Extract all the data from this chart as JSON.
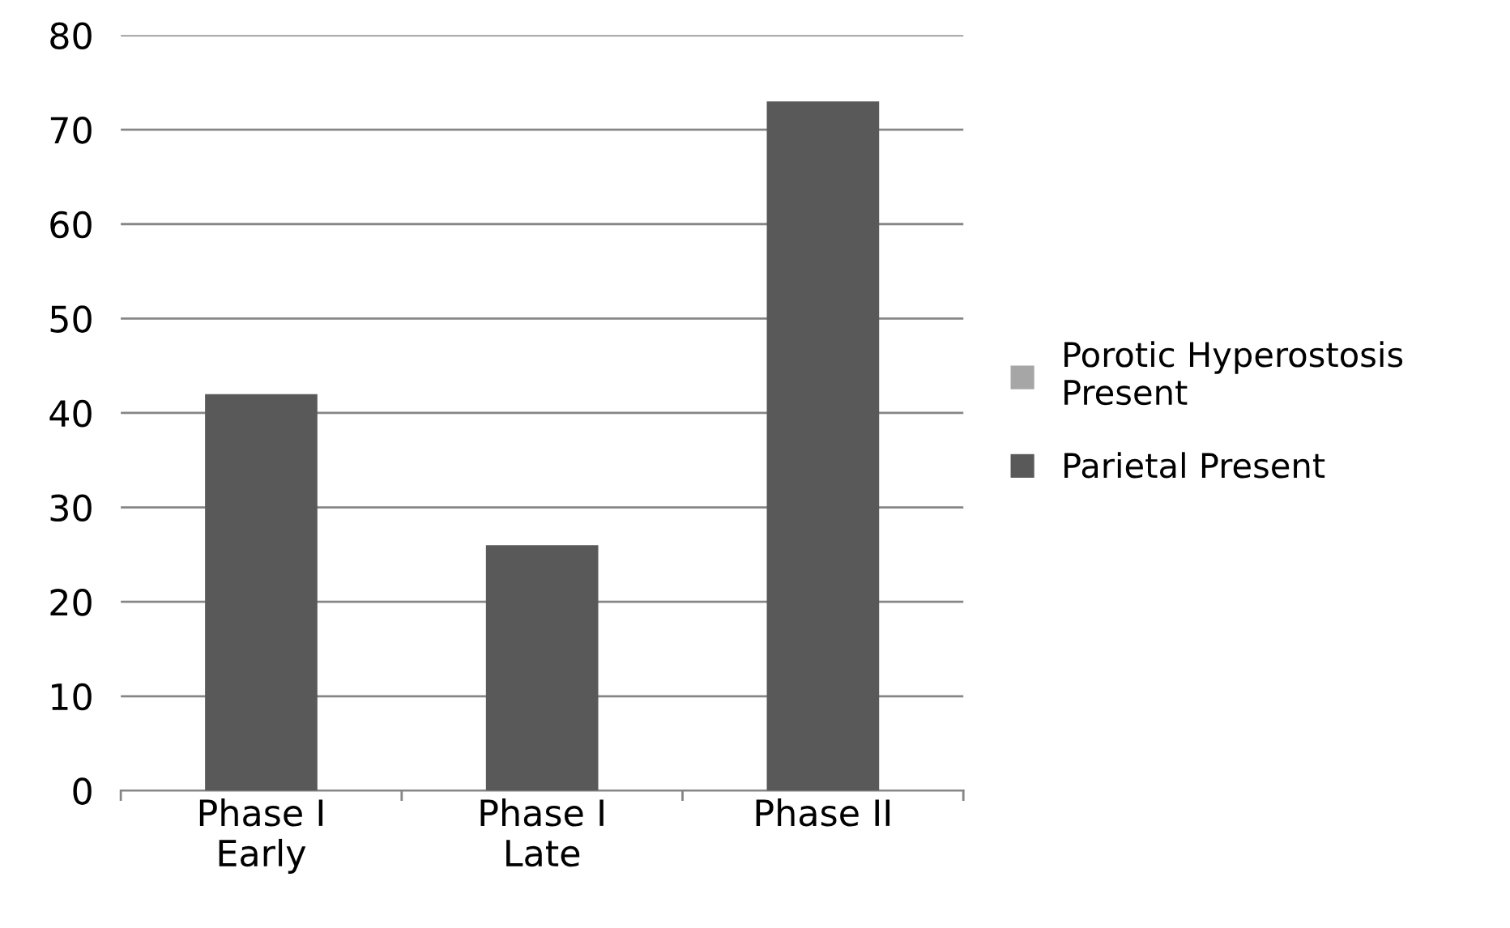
{
  "chart_data": {
    "type": "bar",
    "stacked": true,
    "categories": [
      "Phase I\nEarly",
      "Phase I\nLate",
      "Phase II"
    ],
    "series": [
      {
        "name": "Porotic Hyperostosis\nPresent",
        "color": "#a6a6a6",
        "values": [
          null,
          null,
          null
        ]
      },
      {
        "name": "Parietal Present",
        "color": "#595959",
        "values": [
          42,
          26,
          73
        ]
      }
    ],
    "ylim": [
      0,
      80
    ],
    "yticks": [
      0,
      10,
      20,
      30,
      40,
      50,
      60,
      70,
      80
    ],
    "grid": "y",
    "legend": "right"
  }
}
